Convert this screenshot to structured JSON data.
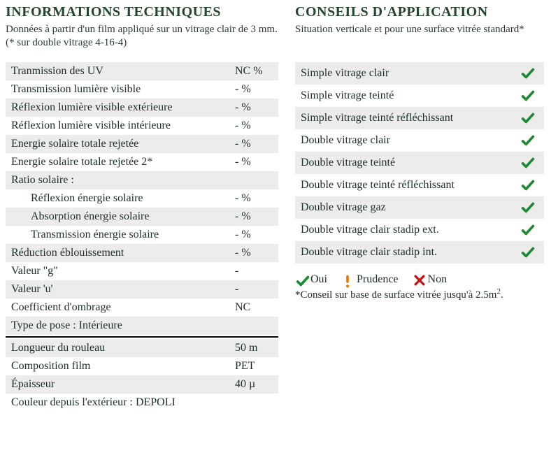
{
  "colors": {
    "heading": "#254431",
    "text": "#203028",
    "row_alt": "#ececec",
    "row_base": "#ffffff",
    "check_green": "#1a8a2f",
    "warn_orange": "#e07a00",
    "cross_red": "#c31818"
  },
  "left": {
    "title": "INFORMATIONS TECHNIQUES",
    "subtitle": "Données à partir d'un film appliqué sur un vitrage clair de 3 mm. (* sur double vitrage 4-16-4)",
    "rows_top": [
      {
        "label": "Tranmission des UV",
        "value": "NC %"
      },
      {
        "label": "Transmission lumière visible",
        "value": "- %"
      },
      {
        "label": "Réflexion lumière visible extérieure",
        "value": "- %"
      },
      {
        "label": "Réflexion lumière visible intérieure",
        "value": "- %"
      },
      {
        "label": "Energie solaire totale rejetée",
        "value": "- %"
      },
      {
        "label": "Energie solaire totale rejetée 2*",
        "value": "- %"
      },
      {
        "label": "Ratio solaire :",
        "value": ""
      },
      {
        "label": "Réflexion énergie solaire",
        "value": "- %",
        "indent": true
      },
      {
        "label": "Absorption énergie solaire",
        "value": "- %",
        "indent": true
      },
      {
        "label": "Transmission énergie solaire",
        "value": "- %",
        "indent": true
      },
      {
        "label": "Réduction éblouissement",
        "value": "- %"
      },
      {
        "label": "Valeur \"g\"",
        "value": "-"
      },
      {
        "label": "Valeur 'u'",
        "value": "-"
      },
      {
        "label": "Coefficient d'ombrage",
        "value": "NC"
      },
      {
        "label": "Type de pose : Intérieure",
        "value": ""
      }
    ],
    "rows_bottom": [
      {
        "label": "Longueur du rouleau",
        "value": "50 m"
      },
      {
        "label": "Composition film",
        "value": "PET"
      },
      {
        "label": "Épaisseur",
        "value": "40 µ"
      },
      {
        "label": "Couleur depuis l'extérieur : DEPOLI",
        "value": ""
      }
    ]
  },
  "right": {
    "title": "CONSEILS D'APPLICATION",
    "subtitle": "Situation verticale et pour une surface vitrée standard*",
    "items": [
      {
        "label": "Simple vitrage clair",
        "status": "ok"
      },
      {
        "label": "Simple vitrage teinté",
        "status": "ok"
      },
      {
        "label": "Simple vitrage teinté réfléchissant",
        "status": "ok"
      },
      {
        "label": "Double vitrage clair",
        "status": "ok"
      },
      {
        "label": "Double vitrage teinté",
        "status": "ok"
      },
      {
        "label": "Double vitrage teinté réfléchissant",
        "status": "ok"
      },
      {
        "label": "Double vitrage gaz",
        "status": "ok"
      },
      {
        "label": "Double vitrage clair stadip ext.",
        "status": "ok"
      },
      {
        "label": "Double vitrage clair stadip int.",
        "status": "ok"
      }
    ],
    "legend": {
      "ok": "Oui",
      "warn": "Prudence",
      "no": "Non",
      "footnote": "*Conseil sur base de surface vitrée jusqu'à 2.5m²."
    }
  }
}
